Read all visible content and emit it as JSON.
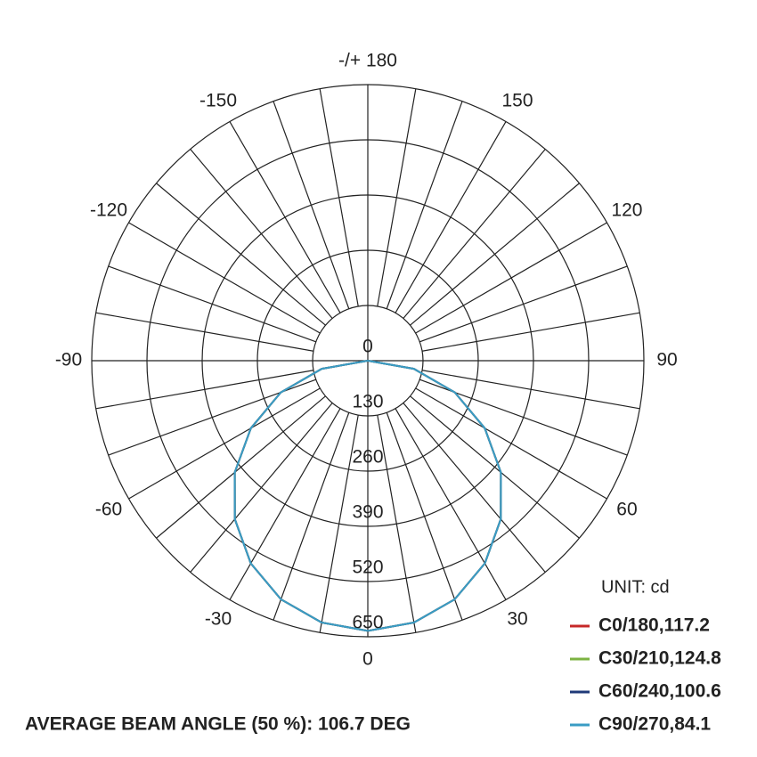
{
  "chart_data": {
    "type": "polar",
    "angles": [
      -90,
      -80,
      -70,
      -60,
      -50,
      -40,
      -30,
      -20,
      -10,
      0,
      10,
      20,
      30,
      40,
      50,
      60,
      70,
      80,
      90
    ],
    "rlim": [
      0,
      650
    ],
    "rticks": [
      0,
      130,
      260,
      390,
      520,
      650
    ],
    "angle_ticks": [
      -150,
      -120,
      -90,
      -60,
      -30,
      0,
      30,
      60,
      90,
      120,
      150,
      {
        "value": 180,
        "label": "-/+ 180"
      }
    ],
    "unit_label": "UNIT: cd",
    "series": [
      {
        "name": "C0/180,117.2",
        "color": "#c62828",
        "values": [
          0,
          110,
          218,
          318,
          409,
          487,
          551,
          598,
          626,
          636,
          626,
          598,
          551,
          487,
          409,
          318,
          218,
          110,
          0
        ]
      },
      {
        "name": "C30/210,124.8",
        "color": "#7cb342",
        "values": [
          0,
          110,
          218,
          318,
          409,
          487,
          551,
          598,
          626,
          636,
          626,
          598,
          551,
          487,
          409,
          318,
          218,
          110,
          0
        ]
      },
      {
        "name": "C60/240,100.6",
        "color": "#1f3a78",
        "values": [
          0,
          110,
          218,
          318,
          409,
          487,
          551,
          598,
          626,
          636,
          626,
          598,
          551,
          487,
          409,
          318,
          218,
          110,
          0
        ]
      },
      {
        "name": "C90/270,84.1",
        "color": "#3a9cc4",
        "values": [
          0,
          110,
          218,
          318,
          409,
          487,
          551,
          598,
          626,
          636,
          626,
          598,
          551,
          487,
          409,
          318,
          218,
          110,
          0
        ]
      }
    ],
    "footnote": "AVERAGE BEAM ANGLE (50 %): 106.7 DEG"
  }
}
